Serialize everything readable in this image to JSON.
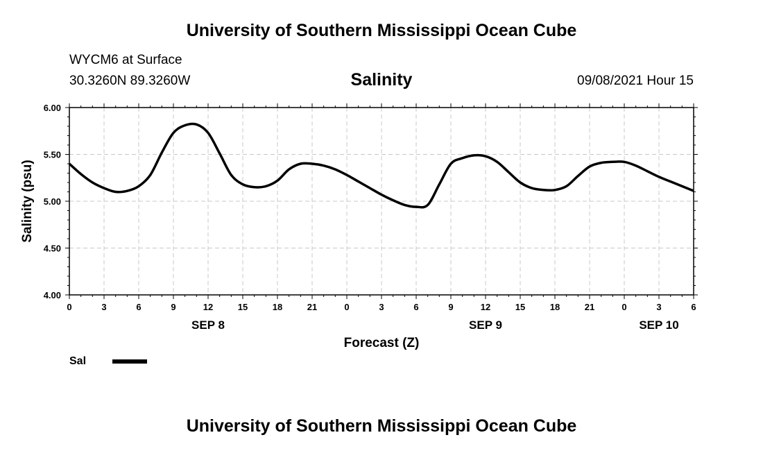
{
  "header": {
    "top_title": "University of Southern Mississippi Ocean Cube",
    "station": "WYCM6 at Surface",
    "coords": "30.3260N  89.3260W",
    "chart_title": "Salinity",
    "datetime": "09/08/2021 Hour 15",
    "bottom_title": "University of Southern Mississippi Ocean Cube"
  },
  "chart_data": {
    "type": "line",
    "title": "Salinity",
    "xlabel": "Forecast (Z)",
    "ylabel": "Salinity (psu)",
    "ylim": [
      4.0,
      6.0
    ],
    "xlim": [
      0,
      54
    ],
    "y_ticks": [
      "6.00",
      "5.50",
      "5.00",
      "4.50",
      "4.00"
    ],
    "x_tick_labels": [
      "0",
      "3",
      "6",
      "9",
      "12",
      "15",
      "18",
      "21",
      "0",
      "3",
      "6",
      "9",
      "12",
      "15",
      "18",
      "21",
      "0",
      "3",
      "6"
    ],
    "date_labels": [
      {
        "label": "SEP 8",
        "hour": 12
      },
      {
        "label": "SEP 9",
        "hour": 36
      },
      {
        "label": "SEP 10",
        "hour": 51
      }
    ],
    "grid": true,
    "legend": "bottom-left",
    "color": "#000000",
    "series": [
      {
        "name": "Sal",
        "x": [
          0,
          1,
          2,
          3,
          4,
          5,
          6,
          7,
          8,
          9,
          10,
          11,
          12,
          13,
          14,
          15,
          16,
          17,
          18,
          19,
          20,
          21,
          22,
          23,
          24,
          25,
          26,
          27,
          28,
          29,
          30,
          31,
          32,
          33,
          34,
          35,
          36,
          37,
          38,
          39,
          40,
          41,
          42,
          43,
          44,
          45,
          46,
          47,
          48,
          49,
          50,
          51,
          52,
          53,
          54
        ],
        "values": [
          5.4,
          5.29,
          5.2,
          5.14,
          5.1,
          5.11,
          5.16,
          5.28,
          5.52,
          5.73,
          5.81,
          5.82,
          5.73,
          5.51,
          5.28,
          5.18,
          5.15,
          5.16,
          5.22,
          5.34,
          5.4,
          5.4,
          5.38,
          5.34,
          5.28,
          5.21,
          5.14,
          5.07,
          5.01,
          4.96,
          4.94,
          4.96,
          5.18,
          5.4,
          5.46,
          5.49,
          5.48,
          5.42,
          5.31,
          5.2,
          5.14,
          5.12,
          5.12,
          5.16,
          5.27,
          5.37,
          5.41,
          5.42,
          5.42,
          5.38,
          5.32,
          5.26,
          5.21,
          5.16,
          5.11
        ]
      }
    ]
  }
}
